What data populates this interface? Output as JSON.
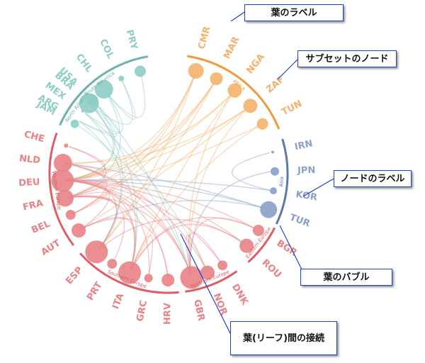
{
  "groups": [
    {
      "id": "sa",
      "label": "South America",
      "color": "#8ecdc6",
      "arcColor": "#6fb3ad",
      "leaves": [
        {
          "code": "ARG",
          "size": 0
        },
        {
          "code": "BRA",
          "size": 14
        },
        {
          "code": "CHL",
          "size": 13
        },
        {
          "code": "COL",
          "size": 4
        },
        {
          "code": "PRY",
          "size": 8
        }
      ]
    },
    {
      "id": "af",
      "label": "Africa",
      "color": "#f4b26a",
      "arcColor": "#ef9a3d",
      "leaves": [
        {
          "code": "CMR",
          "size": 11
        },
        {
          "code": "MAR",
          "size": 9
        },
        {
          "code": "NGA",
          "size": 10
        },
        {
          "code": "ZAF",
          "size": 10
        },
        {
          "code": "TUN",
          "size": 8
        }
      ]
    },
    {
      "id": "as",
      "label": "Asia",
      "color": "#8aa0c9",
      "arcColor": "#5b7aa8",
      "leaves": [
        {
          "code": "IRN",
          "size": 2
        },
        {
          "code": "JPN",
          "size": 6
        },
        {
          "code": "KOR",
          "size": 5
        },
        {
          "code": "TUR",
          "size": 12
        }
      ]
    },
    {
      "id": "ee",
      "label": "Eastern Europe",
      "color": "#e98285",
      "arcColor": "#de5f63",
      "leaves": [
        {
          "code": "BGR",
          "size": 8
        },
        {
          "code": "ROU",
          "size": 10
        }
      ]
    },
    {
      "id": "ne",
      "label": "Northern Europe",
      "color": "#e98285",
      "arcColor": "#de5f63",
      "leaves": [
        {
          "code": "DNK",
          "size": 7
        },
        {
          "code": "NOR",
          "size": 10
        },
        {
          "code": "GBR",
          "size": 16
        }
      ]
    },
    {
      "id": "se",
      "label": "Southern Europe",
      "color": "#e98285",
      "arcColor": "#de5f63",
      "leaves": [
        {
          "code": "HRV",
          "size": 9
        },
        {
          "code": "GRC",
          "size": 6
        },
        {
          "code": "ITA",
          "size": 16
        },
        {
          "code": "PRT",
          "size": 7
        },
        {
          "code": "ESP",
          "size": 16
        }
      ]
    },
    {
      "id": "we",
      "label": "Western Europe",
      "color": "#e98285",
      "arcColor": "#de5f63",
      "leaves": [
        {
          "code": "AUT",
          "size": 10
        },
        {
          "code": "BEL",
          "size": 7
        },
        {
          "code": "FRA",
          "size": 12
        },
        {
          "code": "DEU",
          "size": 16
        },
        {
          "code": "NLD",
          "size": 13
        },
        {
          "code": "CHE",
          "size": 3
        }
      ]
    },
    {
      "id": "na",
      "label": "North America",
      "color": "#8ecdc6",
      "arcColor": "#6fb3ad",
      "leaves": [
        {
          "code": "JAM",
          "size": 6
        },
        {
          "code": "MEX",
          "size": 2
        },
        {
          "code": "USA",
          "size": 8
        }
      ]
    }
  ],
  "links": [
    [
      "ARG",
      "BRA"
    ],
    [
      "ARG",
      "CHL"
    ],
    [
      "BRA",
      "ESP"
    ],
    [
      "BRA",
      "ITA"
    ],
    [
      "CHL",
      "PRY"
    ],
    [
      "CHL",
      "COL"
    ],
    [
      "BRA",
      "COL"
    ],
    [
      "CHL",
      "FRA"
    ],
    [
      "BRA",
      "DEU"
    ],
    [
      "ARG",
      "ITA"
    ],
    [
      "USA",
      "MEX"
    ],
    [
      "USA",
      "GBR"
    ],
    [
      "MEX",
      "ESP"
    ],
    [
      "USA",
      "DEU"
    ],
    [
      "JAM",
      "GBR"
    ],
    [
      "MEX",
      "NOR"
    ],
    [
      "CMR",
      "FRA"
    ],
    [
      "CMR",
      "DEU"
    ],
    [
      "MAR",
      "FRA"
    ],
    [
      "MAR",
      "ESP"
    ],
    [
      "NGA",
      "GBR"
    ],
    [
      "NGA",
      "ITA"
    ],
    [
      "ZAF",
      "GBR"
    ],
    [
      "ZAF",
      "NLD"
    ],
    [
      "TUN",
      "FRA"
    ],
    [
      "TUN",
      "ITA"
    ],
    [
      "MAR",
      "BEL"
    ],
    [
      "CMR",
      "BEL"
    ],
    [
      "NGA",
      "DEU"
    ],
    [
      "ZAF",
      "AUT"
    ],
    [
      "CMR",
      "ESP"
    ],
    [
      "MAR",
      "DEU"
    ],
    [
      "NGA",
      "NLD"
    ],
    [
      "ZAF",
      "DEU"
    ],
    [
      "IRN",
      "KOR"
    ],
    [
      "TUR",
      "DEU"
    ],
    [
      "TUR",
      "NLD"
    ],
    [
      "TUR",
      "AUT"
    ],
    [
      "JPN",
      "GBR"
    ],
    [
      "KOR",
      "DEU"
    ],
    [
      "BGR",
      "DEU"
    ],
    [
      "BGR",
      "ITA"
    ],
    [
      "ROU",
      "ITA"
    ],
    [
      "ROU",
      "ESP"
    ],
    [
      "BGR",
      "GBR"
    ],
    [
      "ROU",
      "DEU"
    ],
    [
      "DNK",
      "GBR"
    ],
    [
      "NOR",
      "GBR"
    ],
    [
      "DNK",
      "DEU"
    ],
    [
      "NOR",
      "NLD"
    ],
    [
      "GBR",
      "DEU"
    ],
    [
      "GBR",
      "FRA"
    ],
    [
      "HRV",
      "DEU"
    ],
    [
      "GRC",
      "DEU"
    ],
    [
      "ITA",
      "FRA"
    ],
    [
      "PRT",
      "FRA"
    ],
    [
      "ESP",
      "FRA"
    ],
    [
      "ITA",
      "DEU"
    ],
    [
      "ESP",
      "DEU"
    ],
    [
      "ITA",
      "AUT"
    ],
    [
      "HRV",
      "AUT"
    ],
    [
      "GRC",
      "ITA"
    ],
    [
      "AUT",
      "DEU"
    ],
    [
      "BEL",
      "NLD"
    ],
    [
      "FRA",
      "DEU"
    ],
    [
      "NLD",
      "DEU"
    ],
    [
      "CHE",
      "DEU"
    ],
    [
      "FRA",
      "BEL"
    ],
    [
      "CHE",
      "FRA"
    ],
    [
      "NLD",
      "GBR"
    ]
  ],
  "callouts": [
    {
      "id": "leaf-label",
      "text": "葉のラベル"
    },
    {
      "id": "subset-node",
      "text": "サブセットのノード"
    },
    {
      "id": "node-label",
      "text": "ノードのラベル"
    },
    {
      "id": "leaf-bubble",
      "text": "葉のバブル"
    },
    {
      "id": "leaf-connection",
      "text": "葉(リーフ)間の接続"
    }
  ]
}
